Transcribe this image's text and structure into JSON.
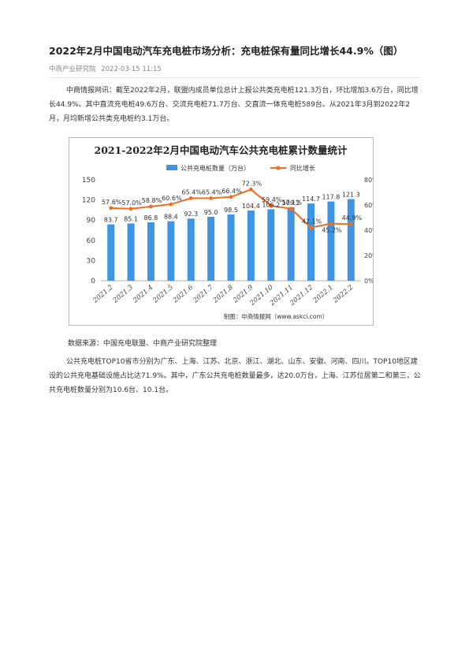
{
  "article": {
    "title": "2022年2月中国电动汽车充电桩市场分析：充电桩保有量同比增长44.9%（图）",
    "source_name": "中商产业研究院",
    "date": "2022-03-15 11:15",
    "paragraph1": "中商情报网讯：截至2022年2月，联盟内成员单位总计上报公共类充电桩121.3万台，环比增加3.6万台，同比增长44.9%。其中直流充电桩49.6万台、交流充电桩71.7万台、交直流一体充电桩589台。从2021年3月到2022年2月，月均新增公共类充电桩约3.1万台。",
    "data_source": "数据来源：中国充电联盟、中商产业研究院整理",
    "paragraph2": "公共充电桩TOP10省市分别为广东、上海、江苏、北京、浙江、湖北、山东、安徽、河南、四川。TOP10地区建设的公共充电基础设施占比达71.9%。其中，广东公共充电桩数量最多，达20.0万台，上海、江苏位居第二和第三，公共充电桩数量分别为10.6台、10.1台。"
  },
  "chart_data": {
    "type": "bar",
    "title": "2021-2022年2月中国电动汽车公共充电桩累计数量统计",
    "categories": [
      "2021.2",
      "2021.3",
      "2021.4",
      "2021.5",
      "2021.6",
      "2021.7",
      "2021.8",
      "2021.9",
      "2021.10",
      "2021.11",
      "2021.12",
      "2022.1",
      "2022.2"
    ],
    "series": [
      {
        "name": "公共充电桩数量（万台）",
        "type": "bar",
        "axis": "left",
        "values": [
          83.7,
          85.1,
          86.8,
          88.4,
          92.3,
          95.0,
          98.5,
          104.4,
          106.2,
          109.2,
          114.7,
          117.8,
          121.3
        ],
        "labels": [
          "83.7",
          "85.1",
          "86.8",
          "88.4",
          "92.3",
          "95.0",
          "98.5",
          "104.4",
          "106.2",
          "109.2",
          "114.7",
          "117.8",
          "121.3"
        ]
      },
      {
        "name": "同比增长",
        "type": "line",
        "axis": "right",
        "values": [
          57.6,
          57.0,
          58.8,
          60.6,
          65.4,
          65.4,
          66.4,
          72.3,
          59.4,
          57.1,
          42.1,
          45.2,
          44.9
        ],
        "labels": [
          "57.6%",
          "57.0%",
          "58.8%",
          "60.6%",
          "65.4%",
          "65.4%",
          "66.4%",
          "72.3%",
          "59.4%",
          "57.1%",
          "42.1%",
          "45.2%",
          "44.9%"
        ]
      }
    ],
    "y_left": {
      "min": 0,
      "max": 150,
      "ticks": [
        "0",
        "30",
        "60",
        "90",
        "120",
        "150"
      ]
    },
    "y_right": {
      "min": 0,
      "max": 80,
      "ticks": [
        "0%",
        "20%",
        "40%",
        "60%",
        "80%"
      ]
    },
    "legend_position": "top",
    "grid": false,
    "credit": "制图：中商情报网（www.askci.com）",
    "colors": {
      "bar": "#3d95e4",
      "line": "#f26d22",
      "title": "#222222",
      "axis_text": "#444444"
    }
  }
}
